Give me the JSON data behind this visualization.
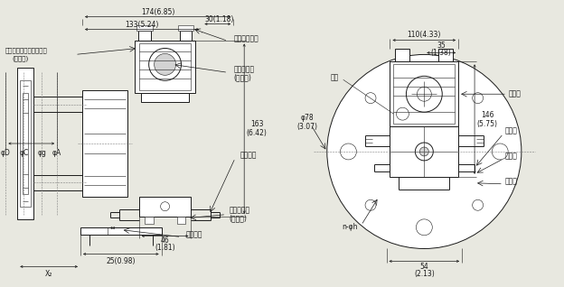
{
  "bg_color": "#e8e8e0",
  "line_color": "#1a1a1a",
  "text_color": "#1a1a1a",
  "fig_width": 6.24,
  "fig_height": 3.18,
  "annotations": {
    "dim_174": "174(6.85)",
    "dim_133": "133(5.24)",
    "dim_30": "30(1.18)",
    "dim_163": "163\n(6.42)",
    "dim_46": "46\n(1.81)",
    "dim_25": "25(0.98)",
    "dim_X2": "X₂",
    "lbl_conduit": "导线管连接口",
    "lbl_display": "内藏显示表",
    "lbl_display2": "(可选购)",
    "lbl_pipe_conn": "管道连接",
    "lbl_pipe_fit": "管道连接件",
    "lbl_pipe_fit2": "(可选购)",
    "lbl_flange": "管道法兰",
    "lbl_ext": "外部显示表导线管连接口",
    "lbl_ext2": "(可选购)",
    "lbl_phi": "φD  φC  φg  φA",
    "dim_110": "110(4.33)",
    "dim_35": "35\n(1.38)",
    "lbl_adj": "调零",
    "lbl_term": "端子侧",
    "dim_phi78": "φ78\n(3.07)",
    "dim_146": "146\n(5.75)",
    "lbl_ground": "接地端",
    "lbl_vent": "排气塞",
    "lbl_drain": "排液塞",
    "lbl_nphi": "n-φh",
    "dim_54": "54\n(2.13)"
  }
}
